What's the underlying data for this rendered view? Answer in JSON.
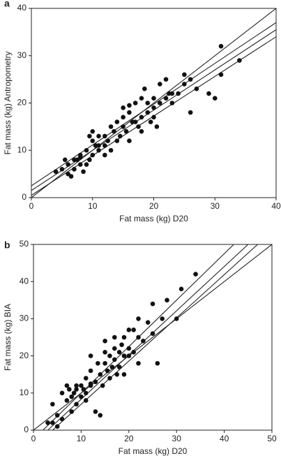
{
  "chart_data": [
    {
      "type": "scatter",
      "label": "a",
      "xlabel": "Fat mass (kg) D20",
      "ylabel": "Fat mass (kg) Antropometry",
      "xlim": [
        0,
        40
      ],
      "ylim": [
        0,
        40
      ],
      "xticks": [
        0,
        10,
        20,
        30,
        40
      ],
      "yticks": [
        0,
        10,
        20,
        30,
        40
      ],
      "color": "#111111",
      "x": [
        4,
        5,
        5.5,
        6,
        6,
        6.5,
        7,
        7.5,
        8,
        8,
        8.5,
        9,
        9,
        9.5,
        10,
        10,
        10,
        10.5,
        11,
        11,
        12,
        12,
        12.5,
        13,
        13,
        13.5,
        14,
        14,
        14.5,
        15,
        15,
        15.5,
        16,
        16,
        16.5,
        17,
        17,
        17.5,
        18,
        18,
        18.5,
        19,
        19,
        19.5,
        20,
        20,
        20.5,
        21,
        21,
        22,
        22,
        22.5,
        23,
        24,
        25,
        25,
        26,
        26,
        27,
        29,
        30,
        31,
        31,
        34,
        9.5,
        11,
        12,
        7,
        8,
        15,
        16,
        18,
        20,
        23
      ],
      "values": [
        5.5,
        6,
        8,
        7,
        5,
        4.5,
        6,
        8,
        7,
        9,
        5.5,
        7,
        10,
        8,
        9,
        12,
        14,
        11,
        13,
        10,
        11,
        13,
        12,
        15,
        10,
        14,
        12,
        16,
        13,
        15,
        17,
        14,
        18,
        12,
        16,
        16,
        20,
        15,
        17,
        14,
        23,
        18,
        20,
        16,
        21,
        17,
        15,
        20,
        24,
        21,
        25,
        22,
        22,
        22,
        24,
        26,
        25,
        18,
        23,
        22,
        21,
        32,
        26,
        29,
        13,
        11,
        9,
        8,
        8.5,
        19,
        19.5,
        21,
        19,
        20
      ],
      "lines": [
        {
          "x": [
            0,
            40
          ],
          "values": [
            0,
            40
          ]
        },
        {
          "x": [
            0,
            40
          ],
          "values": [
            1.5,
            35.5
          ]
        },
        {
          "x": [
            0,
            40
          ],
          "values": [
            2.5,
            37
          ]
        },
        {
          "x": [
            0,
            40
          ],
          "values": [
            0.5,
            34
          ]
        }
      ]
    },
    {
      "type": "scatter",
      "label": "b",
      "xlabel": "Fat mass (kg) D20",
      "ylabel": "Fat mass (kg) BIA",
      "xlim": [
        0,
        50
      ],
      "ylim": [
        0,
        50
      ],
      "xticks": [
        0,
        10,
        20,
        30,
        40,
        50
      ],
      "yticks": [
        0,
        10,
        20,
        30,
        40,
        50
      ],
      "color": "#111111",
      "x": [
        3,
        4,
        4,
        5,
        5,
        6,
        6,
        7,
        7,
        7.5,
        8,
        8,
        8.5,
        9,
        9,
        10,
        10,
        10.5,
        11,
        11,
        12,
        12,
        12,
        13,
        13,
        13.5,
        14,
        14,
        14.5,
        15,
        15,
        15.5,
        16,
        16,
        16.5,
        17,
        17,
        17.5,
        18,
        18,
        18.5,
        19,
        19,
        20,
        20,
        21,
        21,
        22,
        22,
        23,
        24,
        25,
        25,
        26,
        27,
        28,
        30,
        31,
        34,
        9,
        11,
        12,
        15,
        17,
        19,
        20,
        22
      ],
      "values": [
        2,
        2,
        7,
        4,
        1,
        3,
        10,
        8,
        12,
        11,
        5,
        9,
        10,
        11,
        7,
        12,
        9,
        11,
        14,
        8,
        12,
        16,
        20,
        13,
        5,
        18,
        15,
        4,
        12,
        18,
        21,
        16,
        20,
        14,
        17,
        19,
        22,
        15,
        21,
        17,
        23,
        20,
        25,
        22,
        27,
        21,
        27,
        25,
        30,
        24,
        29,
        34,
        26,
        18,
        30,
        35,
        30,
        38,
        42,
        12,
        10,
        12.5,
        24,
        25,
        15,
        20,
        18
      ],
      "lines": [
        {
          "x": [
            0,
            50
          ],
          "values": [
            0,
            50
          ]
        },
        {
          "x": [
            3,
            45
          ],
          "values": [
            0,
            50
          ]
        },
        {
          "x": [
            2,
            42
          ],
          "values": [
            0,
            50
          ]
        },
        {
          "x": [
            4,
            47
          ],
          "values": [
            0,
            50
          ]
        }
      ]
    }
  ]
}
